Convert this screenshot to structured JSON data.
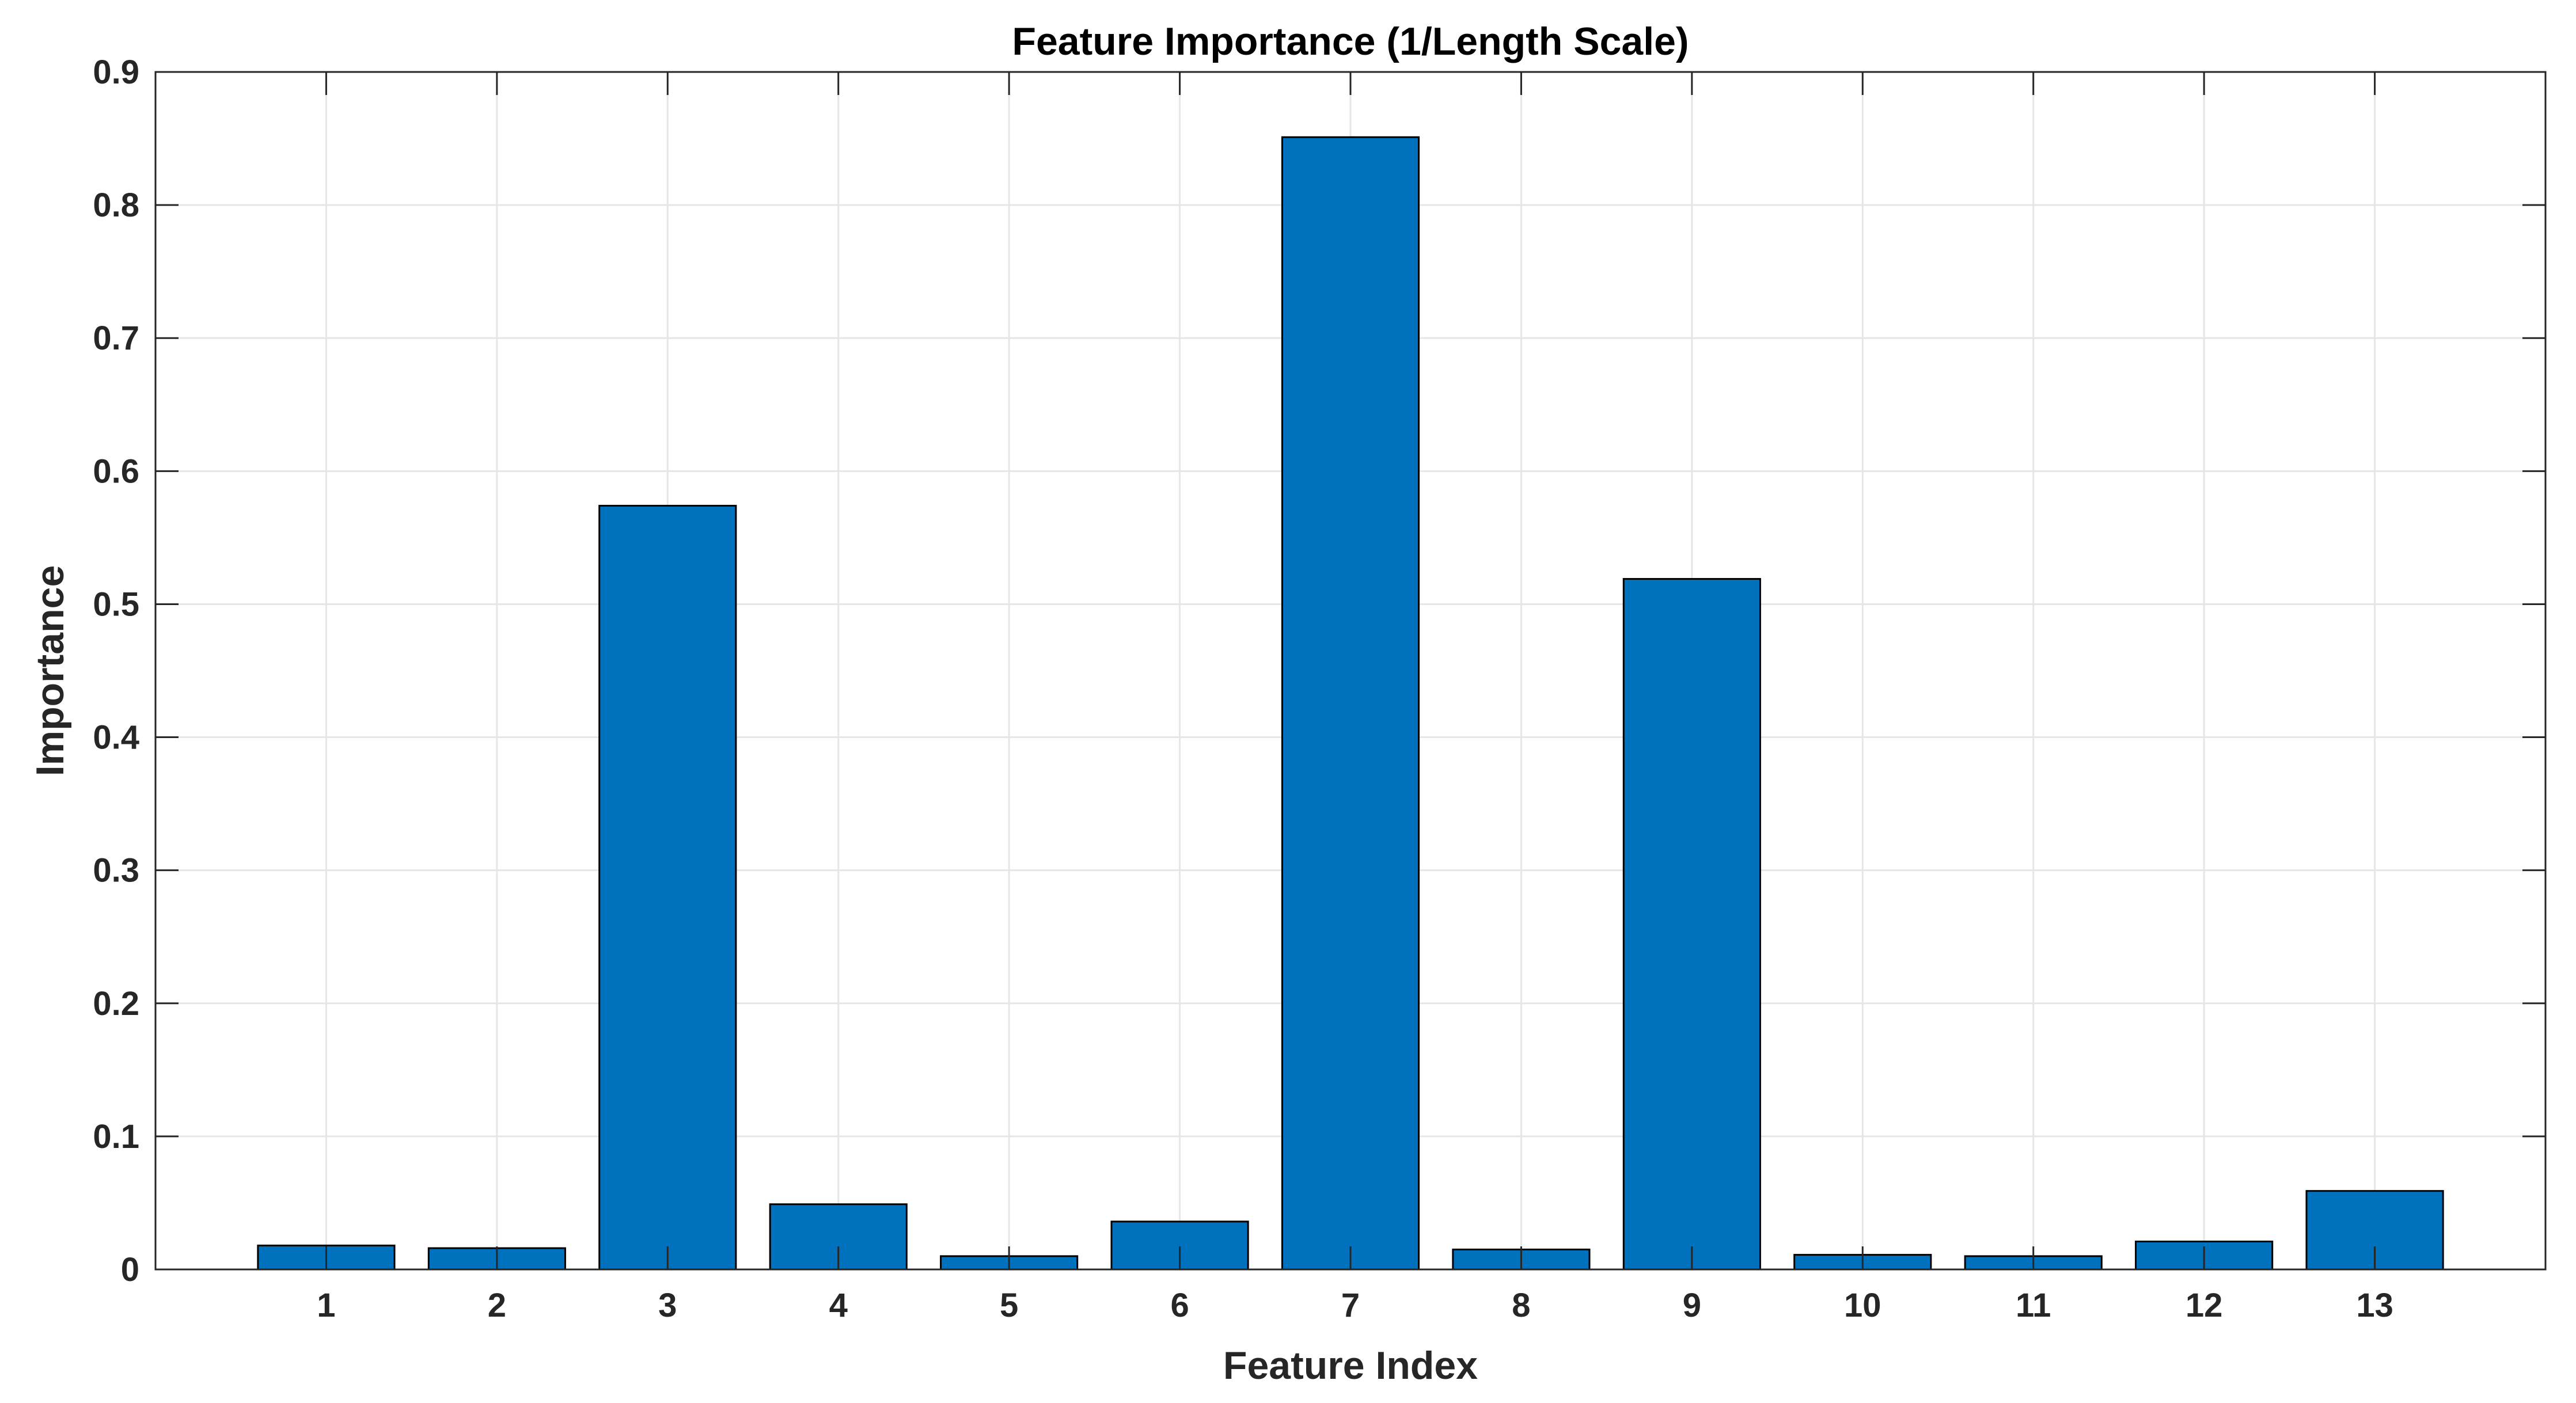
{
  "chart_data": {
    "type": "bar",
    "title": "Feature Importance (1/Length Scale)",
    "xlabel": "Feature Index",
    "ylabel": "Importance",
    "categories": [
      "1",
      "2",
      "3",
      "4",
      "5",
      "6",
      "7",
      "8",
      "9",
      "10",
      "11",
      "12",
      "13"
    ],
    "values": [
      0.018,
      0.016,
      0.574,
      0.049,
      0.01,
      0.036,
      0.851,
      0.015,
      0.519,
      0.011,
      0.01,
      0.021,
      0.059
    ],
    "ylim": [
      0,
      0.9
    ],
    "yticks": [
      0,
      0.1,
      0.2,
      0.3,
      0.4,
      0.5,
      0.6,
      0.7,
      0.8,
      0.9
    ],
    "ytick_labels": [
      "0",
      "0.1",
      "0.2",
      "0.3",
      "0.4",
      "0.5",
      "0.6",
      "0.7",
      "0.8",
      "0.9"
    ],
    "grid": true,
    "legend": "none",
    "colors": {
      "bar_fill": "#0072BD",
      "bar_edge": "#000000",
      "grid": "#E6E6E6",
      "axes": "#262626",
      "text": "#262626"
    }
  }
}
